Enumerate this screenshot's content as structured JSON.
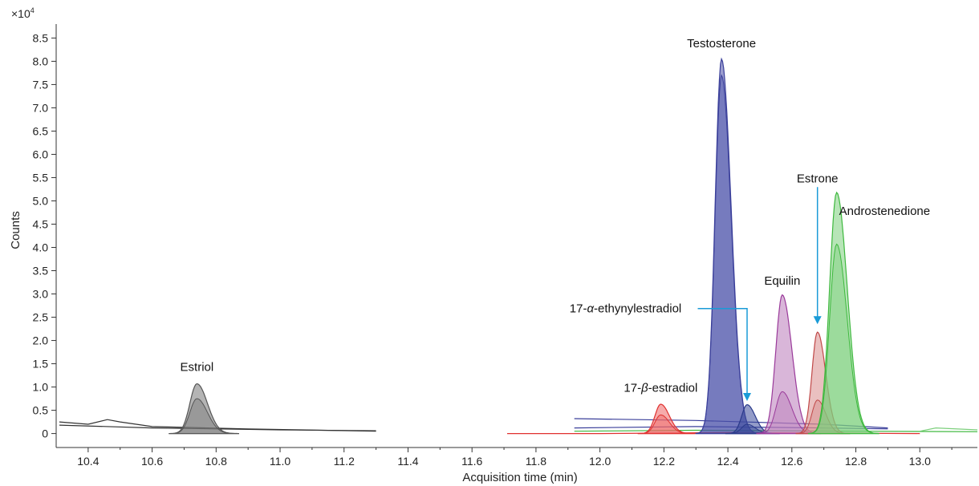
{
  "chart_data": {
    "type": "line",
    "xlabel": "Acquisition time (min)",
    "ylabel": "Counts",
    "y_multiplier_label": "×10",
    "y_multiplier_exp": "4",
    "xlim": [
      10.3,
      13.18
    ],
    "ylim": [
      -0.3,
      8.8
    ],
    "x_ticks": [
      10.4,
      10.6,
      10.8,
      11.0,
      11.2,
      11.4,
      11.6,
      11.8,
      12.0,
      12.2,
      12.4,
      12.6,
      12.8,
      13.0
    ],
    "x_tick_labels": [
      "10.4",
      "10.6",
      "10.8",
      "11.0",
      "11.2",
      "11.4",
      "11.6",
      "11.8",
      "12.0",
      "12.2",
      "12.4",
      "12.6",
      "12.8",
      "13.0"
    ],
    "y_ticks": [
      0,
      0.5,
      1.0,
      1.5,
      2.0,
      2.5,
      3.0,
      3.5,
      4.0,
      4.5,
      5.0,
      5.5,
      6.0,
      6.5,
      7.0,
      7.5,
      8.0,
      8.5
    ],
    "y_tick_labels": [
      "0",
      "0.5",
      "1.0",
      "1.5",
      "2.0",
      "2.5",
      "3.0",
      "3.5",
      "4.0",
      "4.5",
      "5.0",
      "5.5",
      "6.0",
      "6.5",
      "7.0",
      "7.5",
      "8.0",
      "8.5"
    ],
    "peaks": [
      {
        "name": "Estriol",
        "color": "#555555",
        "fill": "#777777",
        "rt": 10.74,
        "height": 1.07,
        "sigma": 0.022,
        "secondary_height": 0.75
      },
      {
        "name": "17-β-estradiol",
        "color": "#e0302f",
        "fill": "#ee6666",
        "rt": 12.19,
        "height": 0.63,
        "sigma": 0.018,
        "secondary_height": 0.4
      },
      {
        "name": "Testosterone",
        "color": "#3a3f9a",
        "fill": "#4a4fa8",
        "rt": 12.38,
        "height": 8.05,
        "sigma": 0.02,
        "secondary_height": 7.7
      },
      {
        "name": "17-α-ethynylestradiol",
        "color": "#2a3a8a",
        "fill": "#3a4a9a",
        "rt": 12.46,
        "height": 0.62,
        "sigma": 0.017,
        "secondary_height": 0.2
      },
      {
        "name": "Equilin",
        "color": "#9a3a9a",
        "fill": "#b97ab9",
        "rt": 12.57,
        "height": 2.98,
        "sigma": 0.02,
        "secondary_height": 0.9
      },
      {
        "name": "Estrone",
        "color": "#c04848",
        "fill": "#d88c8c",
        "rt": 12.68,
        "height": 2.18,
        "sigma": 0.017,
        "secondary_height": 0.72
      },
      {
        "name": "Androstenedione",
        "color": "#3db83d",
        "fill": "#7ccf7c",
        "rt": 12.74,
        "height": 5.18,
        "sigma": 0.022,
        "secondary_height": 4.07
      }
    ],
    "annotations": [
      {
        "text": "Estriol",
        "x": 10.74,
        "y": 1.35,
        "arrow": false
      },
      {
        "text": "17-",
        "greek": "β",
        "suffix": "-estradiol",
        "x": 12.19,
        "y": 0.9,
        "arrow": false
      },
      {
        "text": "Testosterone",
        "x": 12.38,
        "y": 8.3,
        "arrow": false
      },
      {
        "text": "17-",
        "greek": "α",
        "suffix": "-ethynylestradiol",
        "x": 12.08,
        "y": 2.6,
        "arrow": true,
        "arrow_to_x": 12.46,
        "arrow_to_y": 0.7
      },
      {
        "text": "Equilin",
        "x": 12.57,
        "y": 3.2,
        "arrow": false
      },
      {
        "text": "Estrone",
        "x": 12.68,
        "y": 5.4,
        "arrow": true,
        "arrow_to_x": 12.68,
        "arrow_to_y": 2.35
      },
      {
        "text": "Androstenedione",
        "x": 12.89,
        "y": 4.7,
        "arrow": false
      }
    ],
    "arrow_color": "#1a9bd7",
    "grid": false
  }
}
